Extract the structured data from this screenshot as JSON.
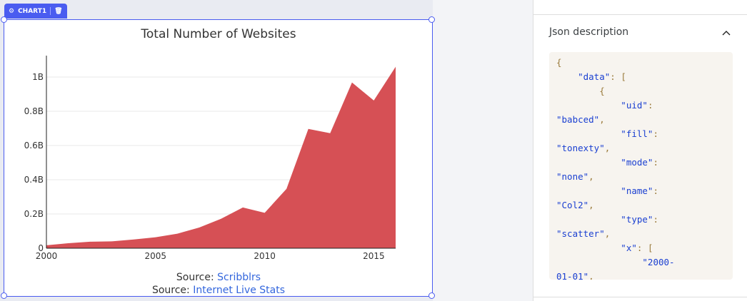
{
  "chart_tag": {
    "label": "CHART1",
    "icons": [
      "gear-icon",
      "trash-icon"
    ]
  },
  "chart_data": {
    "type": "area",
    "title": "Total Number of Websites",
    "x": [
      2000,
      2001,
      2002,
      2003,
      2004,
      2005,
      2006,
      2007,
      2008,
      2009,
      2010,
      2011,
      2012,
      2013,
      2014,
      2015,
      2016
    ],
    "series": [
      {
        "values": [
          17000000,
          29000000,
          38000000,
          40000000,
          51000000,
          64000000,
          85000000,
          121000000,
          172000000,
          238000000,
          207000000,
          347000000,
          697000000,
          672000000,
          968000000,
          863000000,
          1060000000
        ]
      }
    ],
    "xticks": [
      {
        "v": 2000,
        "label": "2000"
      },
      {
        "v": 2005,
        "label": "2005"
      },
      {
        "v": 2010,
        "label": "2010"
      },
      {
        "v": 2015,
        "label": "2015"
      }
    ],
    "yticks": [
      {
        "v": 0,
        "label": "0"
      },
      {
        "v": 200000000,
        "label": "0.2B"
      },
      {
        "v": 400000000,
        "label": "0.4B"
      },
      {
        "v": 600000000,
        "label": "0.6B"
      },
      {
        "v": 800000000,
        "label": "0.8B"
      },
      {
        "v": 1000000000,
        "label": "1B"
      }
    ],
    "xlim": [
      2000,
      2016
    ],
    "ylim": [
      0,
      1120000000
    ],
    "grid": true,
    "color": "#d65055",
    "annotations": [
      {
        "prefix": "Source: ",
        "link": "Scribblrs"
      },
      {
        "prefix": "Source: ",
        "link": "Internet Live Stats"
      }
    ],
    "link_color": "#3366dd"
  },
  "panel": {
    "title": "Json description",
    "collapse_icon": "chevron-up-icon",
    "code_lines": [
      [
        [
          "p",
          "{"
        ]
      ],
      [
        [
          "k",
          "    \"data\""
        ],
        [
          "p",
          ": ["
        ]
      ],
      [
        [
          "p",
          "        {"
        ]
      ],
      [
        [
          "k",
          "            \"uid\""
        ],
        [
          "p",
          ":"
        ]
      ],
      [
        [
          "k",
          "\"babced\""
        ],
        [
          "p",
          ","
        ]
      ],
      [
        [
          "k",
          "            \"fill\""
        ],
        [
          "p",
          ":"
        ]
      ],
      [
        [
          "k",
          "\"tonexty\""
        ],
        [
          "p",
          ","
        ]
      ],
      [
        [
          "k",
          "            \"mode\""
        ],
        [
          "p",
          ":"
        ]
      ],
      [
        [
          "k",
          "\"none\""
        ],
        [
          "p",
          ","
        ]
      ],
      [
        [
          "k",
          "            \"name\""
        ],
        [
          "p",
          ":"
        ]
      ],
      [
        [
          "k",
          "\"Col2\""
        ],
        [
          "p",
          ","
        ]
      ],
      [
        [
          "k",
          "            \"type\""
        ],
        [
          "p",
          ":"
        ]
      ],
      [
        [
          "k",
          "\"scatter\""
        ],
        [
          "p",
          ","
        ]
      ],
      [
        [
          "k",
          "            \"x\""
        ],
        [
          "p",
          ": ["
        ]
      ],
      [
        [
          "k",
          "                \"2000-"
        ]
      ],
      [
        [
          "k",
          "01-01\""
        ],
        [
          "p",
          ","
        ]
      ]
    ]
  }
}
